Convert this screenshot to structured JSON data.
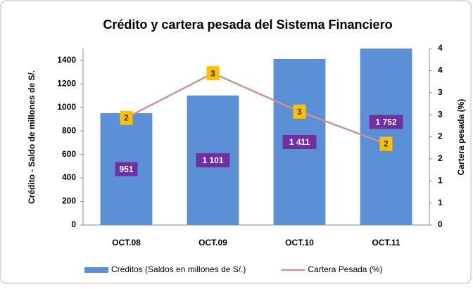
{
  "chart_data": {
    "type": "bar_line",
    "title": "Crédito y cartera pesada del Sistema Financiero",
    "categories": [
      "OCT.08",
      "OCT.09",
      "OCT.10",
      "OCT.11"
    ],
    "y_label": "Crédito - Saldo de millones de S/.",
    "y2_label": "Cartera pesada (%)",
    "series": [
      {
        "name": "Créditos (Saldos en millones de S/.)",
        "type": "bar",
        "color": "#5b8fd6",
        "values": [
          951,
          1101,
          1411,
          1752
        ],
        "value_labels": [
          "951",
          "1 101",
          "1 411",
          "1 752"
        ],
        "label_color": "#7030a0"
      },
      {
        "name": "Cartera Pesada (%)",
        "type": "line",
        "axis": "y2",
        "color": "#c9958f",
        "values": [
          2.43,
          3.44,
          2.57,
          1.84
        ],
        "value_labels": [
          "2",
          "3",
          "3",
          "2"
        ],
        "label_color": "#ffc000"
      }
    ],
    "ylim": [
      0,
      1500
    ],
    "yticks": [
      0,
      200,
      400,
      600,
      800,
      1000,
      1200,
      1400
    ],
    "y2lim": [
      0,
      4
    ],
    "y2ticks": [
      0,
      {
        "value": 0.5,
        "label": "1"
      },
      1,
      {
        "value": 1.5,
        "label": "2"
      },
      2,
      {
        "value": 2.5,
        "label": "3"
      },
      3,
      {
        "value": 3.5,
        "label": "4"
      },
      4
    ],
    "legend": "bottom"
  }
}
